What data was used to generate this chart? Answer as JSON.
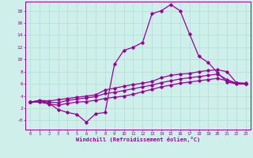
{
  "xlabel": "Windchill (Refroidissement éolien,°C)",
  "bg_color": "#cff0ea",
  "line_color": "#990099",
  "grid_color": "#b0ddd8",
  "xlim": [
    -0.5,
    23.5
  ],
  "ylim": [
    -1.5,
    19.5
  ],
  "xticks": [
    0,
    1,
    2,
    3,
    4,
    5,
    6,
    7,
    8,
    9,
    10,
    11,
    12,
    13,
    14,
    15,
    16,
    17,
    18,
    19,
    20,
    21,
    22,
    23
  ],
  "yticks": [
    0,
    2,
    4,
    6,
    8,
    10,
    12,
    14,
    16,
    18
  ],
  "ytick_labels": [
    "-0",
    "2",
    "4",
    "6",
    "8",
    "10",
    "12",
    "14",
    "16",
    "18"
  ],
  "series1_x": [
    0,
    1,
    2,
    3,
    4,
    5,
    6,
    7,
    8,
    9,
    10,
    11,
    12,
    13,
    14,
    15,
    16,
    17,
    18,
    19,
    20,
    21,
    22,
    23
  ],
  "series1_y": [
    3.0,
    3.2,
    2.8,
    1.8,
    1.3,
    1.0,
    -0.3,
    1.1,
    1.3,
    9.2,
    11.5,
    12.0,
    12.8,
    17.5,
    18.0,
    19.0,
    18.0,
    14.2,
    10.5,
    9.5,
    7.8,
    6.3,
    6.0,
    6.0
  ],
  "series2_x": [
    0,
    1,
    2,
    3,
    4,
    5,
    6,
    7,
    8,
    9,
    10,
    11,
    12,
    13,
    14,
    15,
    16,
    17,
    18,
    19,
    20,
    21,
    22,
    23
  ],
  "series2_y": [
    3.0,
    3.3,
    3.2,
    3.4,
    3.6,
    3.8,
    4.0,
    4.2,
    5.0,
    5.3,
    5.6,
    5.9,
    6.1,
    6.4,
    7.0,
    7.4,
    7.6,
    7.7,
    8.0,
    8.2,
    8.3,
    8.0,
    6.2,
    6.1
  ],
  "series3_x": [
    0,
    1,
    2,
    3,
    4,
    5,
    6,
    7,
    8,
    9,
    10,
    11,
    12,
    13,
    14,
    15,
    16,
    17,
    18,
    19,
    20,
    21,
    22,
    23
  ],
  "series3_y": [
    3.0,
    3.2,
    3.0,
    2.9,
    3.3,
    3.5,
    3.7,
    3.9,
    4.4,
    4.6,
    4.9,
    5.2,
    5.5,
    5.8,
    6.2,
    6.5,
    6.8,
    7.0,
    7.2,
    7.4,
    7.6,
    6.7,
    6.1,
    6.0
  ],
  "series4_x": [
    0,
    1,
    2,
    3,
    4,
    5,
    6,
    7,
    8,
    9,
    10,
    11,
    12,
    13,
    14,
    15,
    16,
    17,
    18,
    19,
    20,
    21,
    22,
    23
  ],
  "series4_y": [
    3.0,
    3.0,
    2.7,
    2.5,
    2.8,
    3.0,
    3.1,
    3.3,
    3.6,
    3.8,
    4.0,
    4.3,
    4.7,
    5.1,
    5.5,
    5.8,
    6.1,
    6.3,
    6.5,
    6.7,
    6.9,
    6.5,
    6.1,
    6.0
  ]
}
